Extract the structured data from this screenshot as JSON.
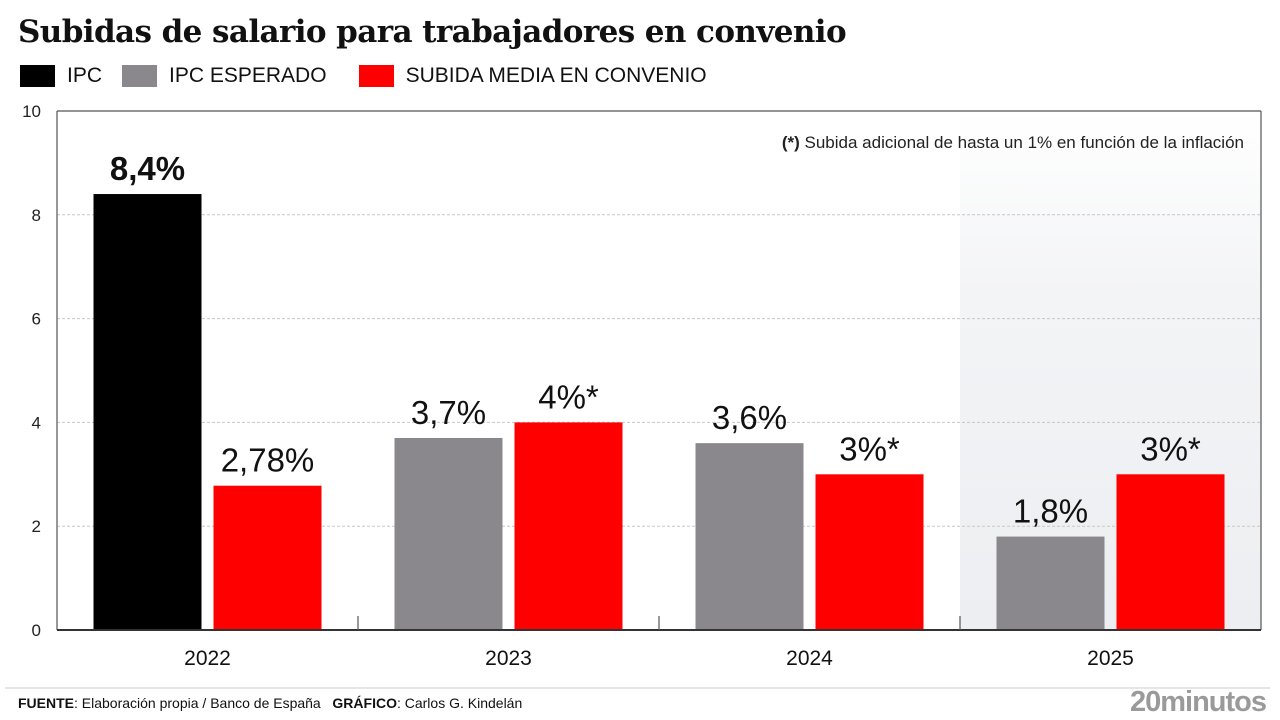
{
  "title": "Subidas de salario para trabajadores en convenio",
  "legend": [
    {
      "label": "IPC",
      "color": "#000000"
    },
    {
      "label": "IPC ESPERADO",
      "color": "#8a888c"
    },
    {
      "label": "SUBIDA MEDIA EN CONVENIO",
      "color": "#ff0000"
    }
  ],
  "note": {
    "marker": "(*)",
    "text": " Subida adicional de hasta un 1% en función de la inflación"
  },
  "footer": {
    "source_label": "FUENTE",
    "source_text": ": Elaboración propia / Banco de España",
    "graphic_label": "GRÁFICO",
    "graphic_text": ": Carlos G. Kindelán"
  },
  "brand": "20minutos",
  "colors": {
    "ipc": "#000000",
    "ipc_esperado": "#8a888c",
    "convenio": "#ff0000",
    "forecast_shade": "#eceef1"
  },
  "chart_data": {
    "type": "bar",
    "title": "Subidas de salario para trabajadores en convenio",
    "xlabel": "",
    "ylabel": "",
    "ylim": [
      0,
      10
    ],
    "yticks": [
      0,
      2,
      4,
      6,
      8,
      10
    ],
    "grid": true,
    "legend_position": "top-left",
    "categories": [
      "2022",
      "2023",
      "2024",
      "2025"
    ],
    "shaded_categories": [
      "2025"
    ],
    "groups": [
      {
        "category": "2022",
        "bars": [
          {
            "series": "IPC",
            "value": 8.4,
            "label": "8,4%",
            "bold": true
          },
          {
            "series": "SUBIDA MEDIA EN CONVENIO",
            "value": 2.78,
            "label": "2,78%"
          }
        ]
      },
      {
        "category": "2023",
        "bars": [
          {
            "series": "IPC ESPERADO",
            "value": 3.7,
            "label": "3,7%"
          },
          {
            "series": "SUBIDA MEDIA EN CONVENIO",
            "value": 4,
            "label": "4%*"
          }
        ]
      },
      {
        "category": "2024",
        "bars": [
          {
            "series": "IPC ESPERADO",
            "value": 3.6,
            "label": "3,6%"
          },
          {
            "series": "SUBIDA MEDIA EN CONVENIO",
            "value": 3,
            "label": "3%*"
          }
        ]
      },
      {
        "category": "2025",
        "bars": [
          {
            "series": "IPC ESPERADO",
            "value": 1.8,
            "label": "1,8%"
          },
          {
            "series": "SUBIDA MEDIA EN CONVENIO",
            "value": 3,
            "label": "3%*"
          }
        ]
      }
    ],
    "annotation": "(*) Subida adicional de hasta un 1% en función de la inflación"
  }
}
